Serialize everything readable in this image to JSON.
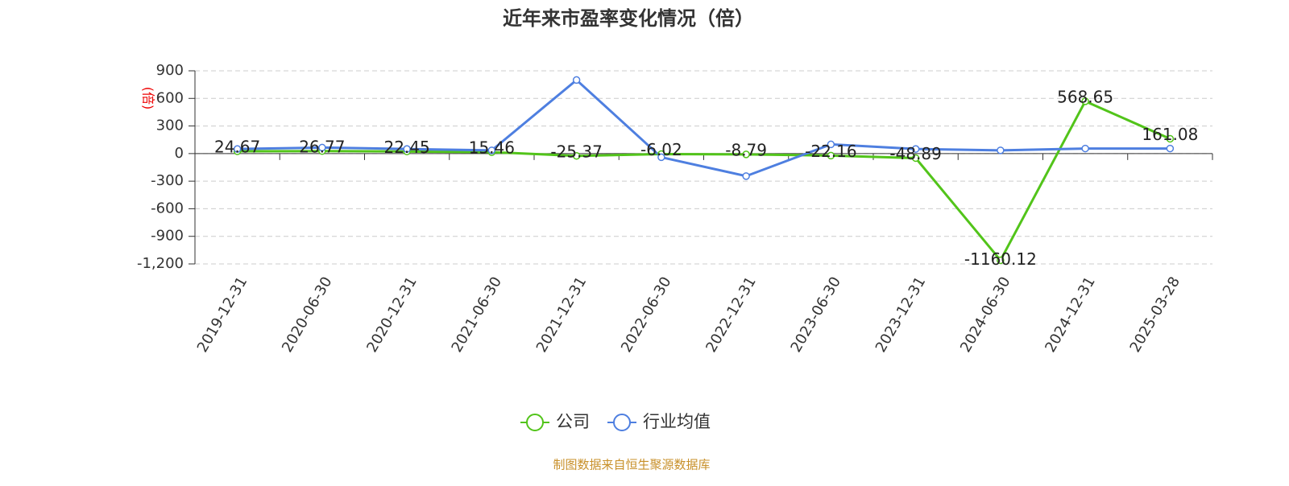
{
  "chart_data": {
    "type": "line",
    "title": "近年来市盈率变化情况（倍）",
    "y_label": "(倍)",
    "source": "制图数据来自恒生聚源数据库",
    "categories": [
      "2019-12-31",
      "2020-06-30",
      "2020-12-31",
      "2021-06-30",
      "2021-12-31",
      "2022-06-30",
      "2022-12-31",
      "2023-06-30",
      "2023-12-31",
      "2024-06-30",
      "2024-12-31",
      "2025-03-28"
    ],
    "series": [
      {
        "name": "公司",
        "color": "#52c41a",
        "values": [
          24.67,
          26.77,
          22.45,
          15.46,
          -25.37,
          -6.02,
          -8.79,
          -22.16,
          -48.89,
          -1160.12,
          568.65,
          161.08
        ]
      },
      {
        "name": "行业均值",
        "color": "#4e7fe0",
        "values": [
          50,
          65,
          50,
          35,
          800,
          -40,
          -245,
          100,
          50,
          35,
          55,
          55
        ]
      }
    ],
    "ylim": [
      -1200,
      900
    ],
    "yticks": [
      900,
      600,
      300,
      0,
      -300,
      -600,
      -900,
      {
        "value": -1200,
        "label": "-1,200"
      }
    ],
    "grid": true
  }
}
